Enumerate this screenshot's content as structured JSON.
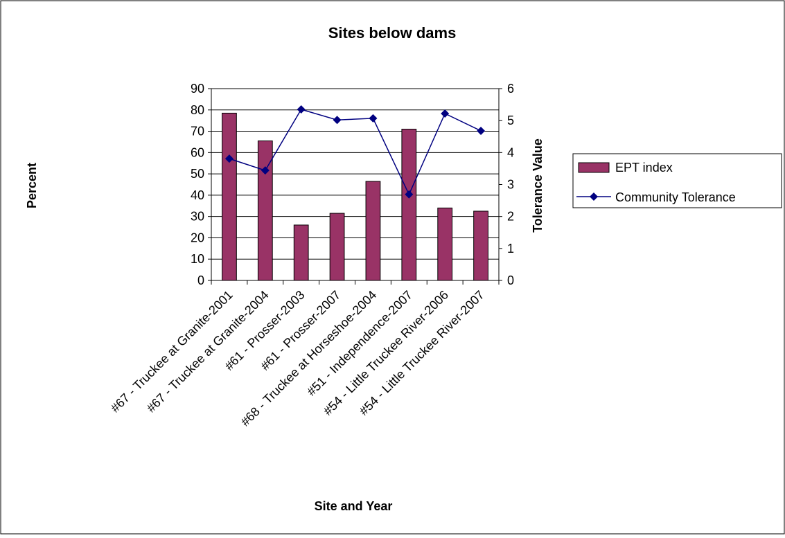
{
  "chart_data": {
    "type": "bar-line",
    "title": "Sites below dams",
    "x_label": "Site and Year",
    "y_label": "Percent",
    "y2_label": "Tolerance Value",
    "categories": [
      "#67 - Truckee at Granite-2001",
      "#67 - Truckee at Granite-2004",
      "#61 - Prosser-2003",
      "#61 - Prosser-2007",
      "#68 - Truckee at Horseshoe-2004",
      "#51 - Independence-2007",
      "#54 - Little Truckee River-2006",
      "#54 - Little Truckee River-2007"
    ],
    "series": [
      {
        "name": "EPT index",
        "type": "bar",
        "color": "#993366",
        "values": [
          78.5,
          65.5,
          26,
          31.5,
          46.5,
          71,
          34,
          32.5
        ]
      },
      {
        "name": "Community Tolerance",
        "type": "line",
        "axis": "y2",
        "color": "#000080",
        "values": [
          3.81,
          3.44,
          5.35,
          5.02,
          5.07,
          2.69,
          5.22,
          4.68
        ]
      }
    ],
    "ylim": [
      0,
      90
    ],
    "yticks": [
      0,
      10,
      20,
      30,
      40,
      50,
      60,
      70,
      80,
      90
    ],
    "y2lim": [
      0,
      6
    ],
    "y2ticks": [
      0,
      1,
      2,
      3,
      4,
      5,
      6
    ],
    "grid": true,
    "legend": "right"
  }
}
